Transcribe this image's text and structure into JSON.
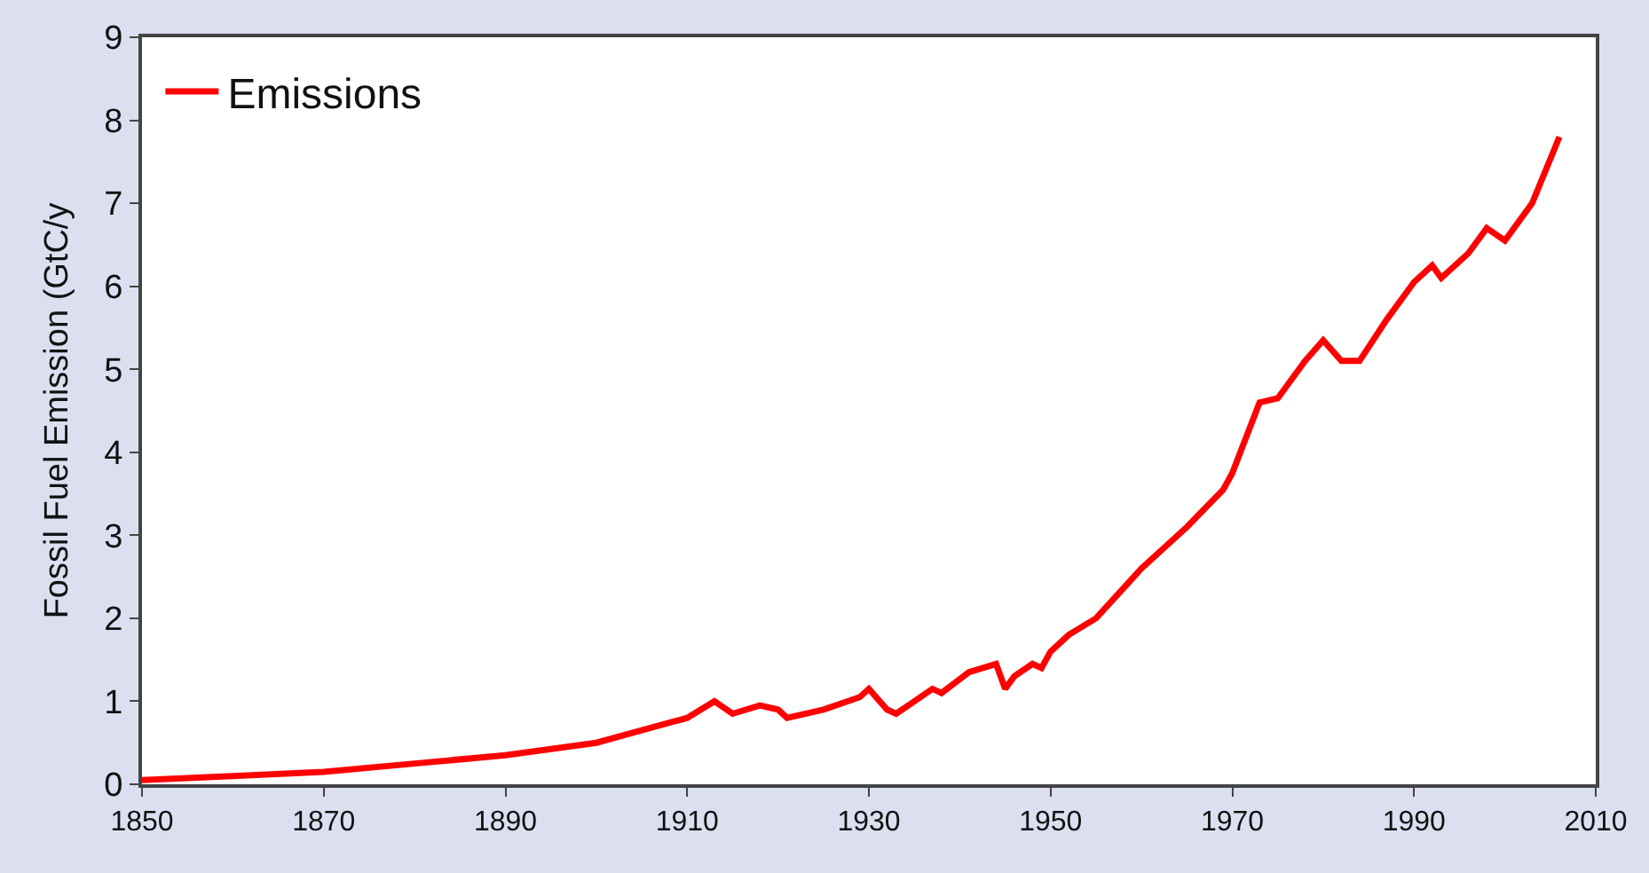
{
  "chart_data": {
    "type": "line",
    "ylabel": "Fossil Fuel Emission (GtC/y",
    "x": [
      1850,
      1860,
      1870,
      1880,
      1890,
      1900,
      1905,
      1910,
      1913,
      1915,
      1918,
      1920,
      1921,
      1925,
      1929,
      1930,
      1932,
      1933,
      1937,
      1938,
      1941,
      1944,
      1945,
      1946,
      1948,
      1949,
      1950,
      1952,
      1955,
      1960,
      1965,
      1969,
      1970,
      1973,
      1975,
      1978,
      1980,
      1982,
      1984,
      1987,
      1990,
      1992,
      1993,
      1996,
      1998,
      2000,
      2003,
      2006
    ],
    "series": [
      {
        "name": "Emissions",
        "color": "#ff0000",
        "values": [
          0.05,
          0.1,
          0.15,
          0.25,
          0.35,
          0.5,
          0.65,
          0.8,
          1.0,
          0.85,
          0.95,
          0.9,
          0.8,
          0.9,
          1.05,
          1.15,
          0.9,
          0.85,
          1.15,
          1.1,
          1.35,
          1.45,
          1.15,
          1.3,
          1.45,
          1.4,
          1.6,
          1.8,
          2.0,
          2.6,
          3.1,
          3.55,
          3.75,
          4.6,
          4.65,
          5.1,
          5.35,
          5.1,
          5.1,
          5.6,
          6.05,
          6.25,
          6.1,
          6.4,
          6.7,
          6.55,
          7.0,
          7.8
        ]
      }
    ],
    "xlim": [
      1850,
      2010
    ],
    "xticks": [
      1850,
      1870,
      1890,
      1910,
      1930,
      1950,
      1970,
      1990,
      2010
    ],
    "ylim": [
      0,
      9
    ],
    "yticks": [
      0,
      1,
      2,
      3,
      4,
      5,
      6,
      7,
      8,
      9
    ],
    "legend": "top left",
    "marker": "none",
    "line_style": "solid"
  }
}
